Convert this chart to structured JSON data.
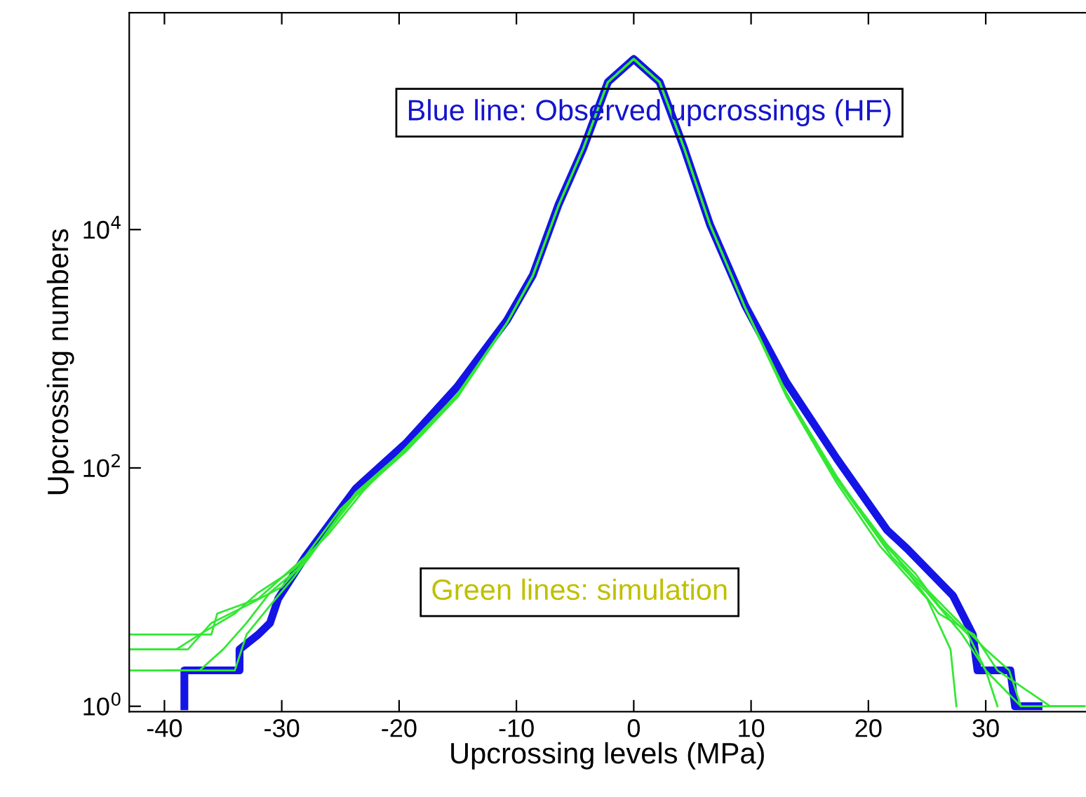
{
  "chart_data": {
    "type": "line",
    "xlabel": "Upcrossing levels (MPa)",
    "ylabel": "Upcrossing numbers",
    "log": "y",
    "grid": false,
    "legend": false,
    "marker": "none",
    "line_style": "solid",
    "xlim": [
      -43,
      38.5
    ],
    "xticks": [
      -40,
      -30,
      -20,
      -10,
      0,
      10,
      20,
      30
    ],
    "ylim": [
      0.9,
      660000
    ],
    "yticks": [
      {
        "value": 1,
        "label": "10$^{0}$"
      },
      {
        "value": 100,
        "label": "10$^{2}$"
      },
      {
        "value": 10000,
        "label": "10$^{4}$"
      }
    ],
    "annotations": [
      "Blue line: Observed upcrossings (HF)",
      "Green lines: simulation"
    ],
    "series": [
      {
        "color": "#33e833",
        "x": [
          -43,
          -36,
          -35.5,
          -32,
          -30,
          -28,
          -25,
          -23.7,
          -19.4,
          -15,
          -10.8,
          -8.6,
          -6.4,
          -4.3,
          -2.2,
          0,
          2.2,
          4.3,
          6.5,
          9.5,
          13,
          17.3,
          21,
          24,
          27,
          30,
          32,
          33,
          38.5
        ],
        "values": [
          4,
          4,
          6,
          8,
          12,
          18,
          45,
          60,
          140,
          400,
          1650,
          4100,
          16000,
          48000,
          173000,
          270000,
          173000,
          48000,
          11000,
          2200,
          420,
          85,
          25,
          12,
          6,
          3,
          2,
          1,
          1
        ]
      },
      {
        "color": "#33e833",
        "x": [
          -43,
          -38,
          -36,
          -33,
          -30,
          -27,
          -25,
          -23.7,
          -19.4,
          -15,
          -10.8,
          -8.6,
          -6.4,
          -4.3,
          -2.2,
          0,
          2.2,
          4.3,
          6.5,
          9.5,
          13,
          17.3,
          21,
          25,
          27,
          27.5
        ],
        "values": [
          3,
          3,
          5,
          7,
          10,
          22,
          42,
          62,
          145,
          410,
          1650,
          4100,
          16000,
          48000,
          173000,
          270000,
          173000,
          48000,
          11000,
          2200,
          400,
          75,
          22,
          8,
          3,
          1
        ]
      },
      {
        "color": "#33e833",
        "x": [
          -43,
          -34,
          -33,
          -31,
          -29,
          -26,
          -23.7,
          -19.4,
          -15,
          -10.8,
          -8.6,
          -6.4,
          -4.3,
          -2.2,
          0,
          2.2,
          4.3,
          6.5,
          9.5,
          13,
          17,
          22,
          26,
          29,
          31,
          35.5,
          38.5
        ],
        "values": [
          2,
          2,
          4,
          7,
          12,
          30,
          58,
          138,
          395,
          1650,
          4100,
          16000,
          48000,
          173000,
          270000,
          173000,
          48000,
          11000,
          2200,
          430,
          90,
          20,
          6,
          4,
          2,
          1,
          1
        ]
      },
      {
        "color": "#33e833",
        "x": [
          -40,
          -37,
          -35,
          -33,
          -31,
          -28,
          -24,
          -19.4,
          -15,
          -10.8,
          -8.6,
          -6.4,
          -4.3,
          -2.2,
          0,
          2.2,
          4.3,
          6.5,
          9.5,
          13,
          17.3,
          22,
          25,
          28,
          30,
          31
        ],
        "values": [
          2,
          2,
          3,
          5,
          9,
          16,
          55,
          142,
          405,
          1650,
          4100,
          16000,
          48000,
          173000,
          270000,
          173000,
          48000,
          11000,
          2200,
          410,
          80,
          18,
          9,
          4,
          2,
          1
        ]
      },
      {
        "color": "#33e833",
        "x": [
          -43,
          -39,
          -37,
          -34,
          -32,
          -29,
          -26,
          -23,
          -19.4,
          -15,
          -10.8,
          -8.6,
          -6.4,
          -4.3,
          -2.2,
          0,
          2.2,
          4.3,
          6.5,
          9.5,
          13,
          17.3,
          21,
          24,
          26,
          28.5,
          30,
          33
        ],
        "values": [
          3,
          3,
          4,
          6,
          9,
          14,
          28,
          65,
          148,
          420,
          1650,
          4100,
          16000,
          48000,
          173000,
          270000,
          173000,
          48000,
          11000,
          2200,
          415,
          82,
          26,
          13,
          7,
          4,
          2,
          1
        ]
      },
      {
        "color": "#1414e6",
        "x": [
          -38.3,
          -38.3,
          -33.6,
          -33.6,
          -32,
          -31,
          -30.3,
          -28,
          -23.7,
          -19.4,
          -15.05,
          -10.8,
          -8.6,
          -6.4,
          -4.3,
          -2.2,
          0,
          2.2,
          4.3,
          6.5,
          9.5,
          13,
          17.3,
          21.6,
          23.3,
          27.2,
          28.9,
          29.3,
          32.1,
          32.5,
          34.5
        ],
        "values": [
          1,
          2,
          2,
          3,
          4,
          5,
          8,
          18,
          67,
          162,
          480,
          1740,
          4150,
          16300,
          48000,
          173000,
          270000,
          173000,
          48000,
          11000,
          2300,
          525,
          120,
          30,
          21,
          8.5,
          4,
          2,
          2,
          1,
          1
        ]
      }
    ]
  }
}
